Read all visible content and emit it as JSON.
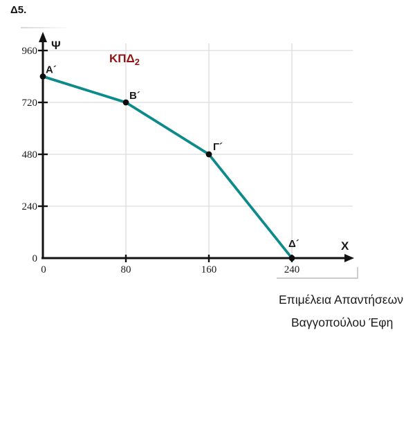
{
  "header": {
    "exercise_label": "Δ5."
  },
  "footer": {
    "credit_line_1": "Επιμέλεια Απαντήσεων",
    "credit_line_2": "Βαγγοπούλου Έφη"
  },
  "colors": {
    "curve": "#0d8a8a",
    "curve_label": "#8e1616",
    "axis": "#121212",
    "grid": "#dcdcdc",
    "tick_text": "#1a1a1a",
    "point": "#0d0d0d"
  },
  "chart_data": {
    "type": "line",
    "title": "ΚΠΔ2 production possibilities curve",
    "curve_label": {
      "text": "ΚΠΔ",
      "subscript": "2"
    },
    "xlabel": "Χ",
    "ylabel": "Ψ",
    "x_ticks": [
      0,
      80,
      160,
      240
    ],
    "y_ticks": [
      0,
      240,
      480,
      720,
      960
    ],
    "xlim": [
      0,
      300
    ],
    "ylim": [
      0,
      1000
    ],
    "grid": true,
    "legend": "none",
    "series": [
      {
        "name": "ΚΠΔ2",
        "points": [
          {
            "label": "Α´",
            "x": 0,
            "y": 840
          },
          {
            "label": "Β´",
            "x": 80,
            "y": 720
          },
          {
            "label": "Γ´",
            "x": 160,
            "y": 480
          },
          {
            "label": "Δ´",
            "x": 240,
            "y": 0
          }
        ]
      }
    ]
  }
}
